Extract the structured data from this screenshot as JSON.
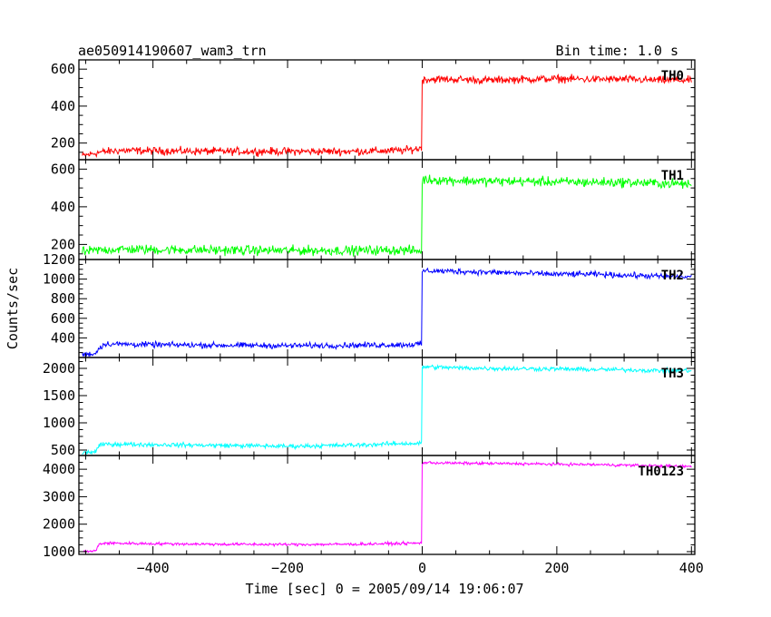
{
  "chart_data": {
    "type": "line",
    "title": "ae050914190607_wam3_trn",
    "bin_time_label": "Bin time: 1.0 s",
    "xlabel": "Time [sec] 0 = 2005/09/14 19:06:07",
    "ylabel": "Counts/sec",
    "xlim": [
      -510,
      405
    ],
    "x_ticks": [
      -400,
      -200,
      0,
      200,
      400
    ],
    "grid": false,
    "panels": [
      {
        "name": "TH0",
        "color": "#ff0000",
        "ylim": [
          110,
          650
        ],
        "y_ticks": [
          200,
          400,
          600
        ],
        "segments": [
          {
            "x": [
              -505,
              -480,
              -450,
              -400,
              -300,
              -200,
              -100,
              -30,
              -5,
              -1
            ],
            "y": [
              130,
              150,
              160,
              158,
              155,
              155,
              155,
              160,
              170,
              175
            ]
          },
          {
            "x": [
              0,
              5,
              50,
              100,
              150,
              200,
              250,
              300,
              350,
              400
            ],
            "y": [
              540,
              545,
              545,
              540,
              545,
              548,
              545,
              545,
              540,
              540
            ]
          }
        ],
        "noise": 18
      },
      {
        "name": "TH1",
        "color": "#00ff00",
        "ylim": [
          120,
          650
        ],
        "y_ticks": [
          200,
          400,
          600
        ],
        "segments": [
          {
            "x": [
              -505,
              -480,
              -450,
              -400,
              -300,
              -200,
              -100,
              -30,
              -5,
              -1
            ],
            "y": [
              160,
              170,
              175,
              172,
              170,
              168,
              168,
              170,
              165,
              160
            ]
          },
          {
            "x": [
              0,
              5,
              50,
              100,
              150,
              200,
              250,
              300,
              350,
              400
            ],
            "y": [
              540,
              545,
              540,
              535,
              535,
              532,
              530,
              530,
              525,
              520
            ]
          }
        ],
        "noise": 22
      },
      {
        "name": "TH2",
        "color": "#0000ff",
        "ylim": [
          200,
          1200
        ],
        "y_ticks": [
          400,
          600,
          800,
          1000,
          1200
        ],
        "segments": [
          {
            "x": [
              -505,
              -485,
              -480,
              -470,
              -400,
              -300,
              -200,
              -100,
              -30,
              -1
            ],
            "y": [
              230,
              240,
              300,
              340,
              330,
              325,
              320,
              325,
              330,
              335
            ]
          },
          {
            "x": [
              0,
              5,
              50,
              100,
              150,
              200,
              250,
              300,
              350,
              400
            ],
            "y": [
              1080,
              1085,
              1080,
              1070,
              1060,
              1050,
              1050,
              1040,
              1030,
              1020
            ]
          }
        ],
        "noise": 25
      },
      {
        "name": "TH3",
        "color": "#00ffff",
        "ylim": [
          400,
          2200
        ],
        "y_ticks": [
          500,
          1000,
          1500,
          2000
        ],
        "segments": [
          {
            "x": [
              -505,
              -485,
              -480,
              -470,
              -400,
              -300,
              -200,
              -100,
              -30,
              -1
            ],
            "y": [
              450,
              470,
              580,
              610,
              600,
              585,
              570,
              590,
              620,
              620
            ]
          },
          {
            "x": [
              0,
              5,
              50,
              100,
              150,
              200,
              250,
              300,
              350,
              400
            ],
            "y": [
              2020,
              2030,
              2010,
              2000,
              1995,
              1990,
              1980,
              1975,
              1960,
              1960
            ]
          }
        ],
        "noise": 35
      },
      {
        "name": "TH0123",
        "color": "#ff00ff",
        "ylim": [
          900,
          4500
        ],
        "y_ticks": [
          1000,
          2000,
          3000,
          4000
        ],
        "segments": [
          {
            "x": [
              -505,
              -485,
              -480,
              -470,
              -400,
              -300,
              -200,
              -100,
              -30,
              -1
            ],
            "y": [
              1000,
              1020,
              1280,
              1310,
              1290,
              1270,
              1260,
              1270,
              1300,
              1310
            ]
          },
          {
            "x": [
              0,
              5,
              50,
              100,
              150,
              200,
              250,
              300,
              350,
              400
            ],
            "y": [
              4230,
              4240,
              4220,
              4210,
              4200,
              4180,
              4170,
              4150,
              4120,
              4100
            ]
          }
        ],
        "noise": 45
      }
    ]
  }
}
